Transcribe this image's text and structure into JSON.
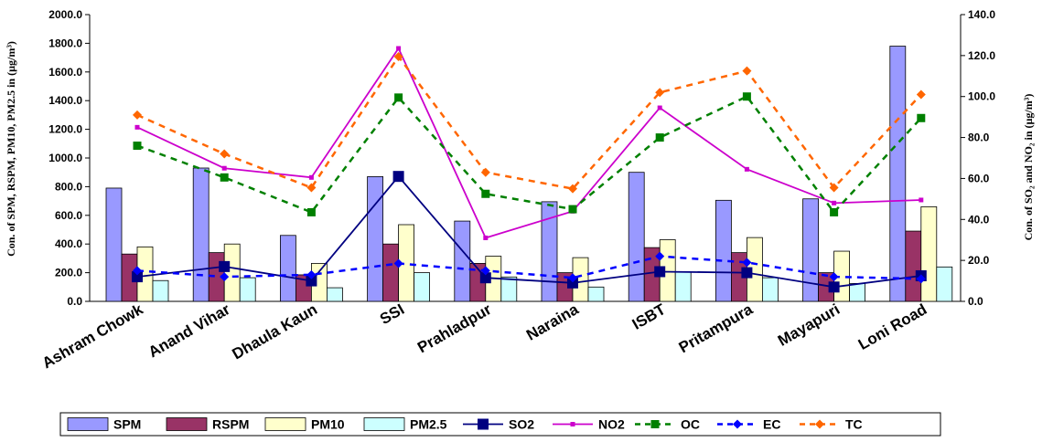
{
  "chart_data": {
    "type": "bar",
    "title": "",
    "categories": [
      "Ashram Chowk",
      "Anand Vihar",
      "Dhaula Kaun",
      "SSI",
      "Prahladpur",
      "Naraina",
      "ISBT",
      "Pritampura",
      "Mayapuri",
      "Loni Road"
    ],
    "ylabel_left": "Con. of SPM, RSPM, PM10, PM2.5 in (µg/m³)",
    "ylabel_right": "Con. of SO₂ and NO₂ in (µg/m³)",
    "ylim_left": [
      0,
      2000
    ],
    "ylim_right": [
      0,
      140
    ],
    "yticks_left": [
      "0.0",
      "200.0",
      "400.0",
      "600.0",
      "800.0",
      "1000.0",
      "1200.0",
      "1400.0",
      "1600.0",
      "1800.0",
      "2000.0"
    ],
    "yticks_right": [
      "0.0",
      "20.0",
      "40.0",
      "60.0",
      "80.0",
      "100.0",
      "120.0",
      "140.0"
    ],
    "grid": false,
    "legend_position": "bottom",
    "series": [
      {
        "name": "SPM",
        "kind": "bar",
        "axis": "left",
        "color": "#9999ff",
        "values": [
          790,
          930,
          460,
          870,
          560,
          695,
          900,
          705,
          715,
          1780
        ]
      },
      {
        "name": "RSPM",
        "kind": "bar",
        "axis": "left",
        "color": "#993366",
        "values": [
          330,
          340,
          185,
          400,
          265,
          200,
          375,
          340,
          200,
          490
        ]
      },
      {
        "name": "PM10",
        "kind": "bar",
        "axis": "left",
        "color": "#ffffcc",
        "values": [
          380,
          400,
          265,
          535,
          315,
          305,
          430,
          445,
          350,
          660
        ]
      },
      {
        "name": "PM2.5",
        "kind": "bar",
        "axis": "left",
        "color": "#ccffff",
        "values": [
          145,
          165,
          95,
          200,
          170,
          100,
          205,
          165,
          125,
          240
        ]
      },
      {
        "name": "SO2",
        "kind": "line",
        "axis": "right",
        "style": "solid",
        "marker": "square-large",
        "color": "#000080",
        "values": [
          12,
          17,
          10,
          61,
          11.5,
          9,
          14.5,
          14,
          7,
          12.5
        ]
      },
      {
        "name": "NO2",
        "kind": "line",
        "axis": "right",
        "style": "solid",
        "marker": "square-small",
        "color": "#cc00cc",
        "values": [
          85,
          65,
          60.5,
          123.5,
          31,
          44,
          94.5,
          64.5,
          48,
          49.5
        ]
      },
      {
        "name": "OC",
        "kind": "line",
        "axis": "right",
        "style": "dashed",
        "marker": "square",
        "color": "#008000",
        "values": [
          76,
          60.5,
          43.5,
          99.5,
          52.5,
          45,
          80,
          100,
          43.5,
          89.5
        ]
      },
      {
        "name": "EC",
        "kind": "line",
        "axis": "right",
        "style": "dashed",
        "marker": "diamond",
        "color": "#0000ff",
        "values": [
          15,
          12,
          13,
          18.5,
          15,
          11.5,
          22,
          19,
          12,
          11
        ]
      },
      {
        "name": "TC",
        "kind": "line",
        "axis": "right",
        "style": "dashed",
        "marker": "diamond",
        "color": "#ff6600",
        "values": [
          91,
          72,
          55.5,
          119.5,
          63,
          55,
          102,
          112.5,
          55.5,
          101
        ]
      }
    ]
  }
}
